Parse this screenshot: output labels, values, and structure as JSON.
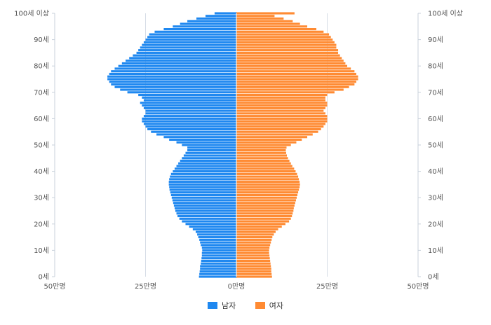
{
  "chart_data": {
    "type": "bar",
    "orientation": "horizontal-population-pyramid",
    "age_axis": {
      "min": 0,
      "max": 100,
      "tick_labels": [
        {
          "age": 0,
          "label": "0세"
        },
        {
          "age": 10,
          "label": "10세"
        },
        {
          "age": 20,
          "label": "20세"
        },
        {
          "age": 30,
          "label": "30세"
        },
        {
          "age": 40,
          "label": "40세"
        },
        {
          "age": 50,
          "label": "50세"
        },
        {
          "age": 60,
          "label": "60세"
        },
        {
          "age": 70,
          "label": "70세"
        },
        {
          "age": 80,
          "label": "80세"
        },
        {
          "age": 90,
          "label": "90세"
        },
        {
          "age": 100,
          "label": "100세 이상"
        }
      ]
    },
    "value_axis": {
      "unit": "만명",
      "range": [
        -50,
        50
      ],
      "tick_labels": [
        {
          "value": -50,
          "label": "50만명"
        },
        {
          "value": -25,
          "label": "25만명"
        },
        {
          "value": 0,
          "label": "0만명"
        },
        {
          "value": 25,
          "label": "25만명"
        },
        {
          "value": 50,
          "label": "50만명"
        }
      ]
    },
    "grid": true,
    "legend": {
      "position": "bottom-center",
      "items": [
        {
          "name": "남자",
          "color": "#1f88f0"
        },
        {
          "name": "여자",
          "color": "#ff8b33"
        }
      ]
    },
    "series": [
      {
        "name": "남자",
        "color": "#1f88f0",
        "values": [
          10.3,
          10.2,
          10.1,
          10.0,
          10.0,
          9.8,
          9.7,
          9.6,
          9.5,
          9.5,
          9.4,
          9.5,
          9.8,
          10.0,
          10.2,
          10.5,
          10.8,
          11.2,
          12.0,
          13.0,
          14.0,
          15.0,
          15.7,
          16.2,
          16.5,
          16.8,
          17.0,
          17.2,
          17.4,
          17.6,
          17.8,
          18.0,
          18.2,
          18.4,
          18.5,
          18.6,
          18.6,
          18.5,
          18.3,
          18.0,
          17.5,
          17.0,
          16.5,
          16.0,
          15.5,
          15.0,
          14.5,
          14.0,
          13.5,
          13.5,
          15.0,
          16.5,
          18.5,
          20.0,
          22.0,
          23.5,
          24.5,
          25.0,
          25.5,
          26.0,
          26.0,
          25.5,
          25.0,
          25.0,
          25.5,
          26.0,
          26.5,
          25.5,
          26.0,
          27.0,
          30.0,
          32.0,
          33.5,
          34.5,
          35.0,
          35.5,
          35.5,
          35.0,
          34.5,
          33.5,
          32.5,
          31.5,
          30.5,
          29.5,
          28.5,
          27.5,
          27.0,
          26.5,
          26.0,
          25.5,
          25.0,
          24.5,
          24.0,
          22.5,
          20.0,
          17.5,
          15.5,
          13.5,
          11.0,
          8.5,
          6.0
        ],
        "labels": []
      },
      {
        "name": "여자",
        "color": "#ff8b33",
        "values": [
          9.8,
          9.7,
          9.6,
          9.6,
          9.5,
          9.4,
          9.3,
          9.2,
          9.1,
          9.0,
          9.0,
          9.1,
          9.3,
          9.5,
          9.7,
          9.9,
          10.3,
          10.8,
          11.5,
          12.5,
          13.5,
          14.5,
          15.0,
          15.3,
          15.5,
          15.7,
          15.8,
          16.0,
          16.2,
          16.4,
          16.6,
          16.8,
          17.0,
          17.2,
          17.4,
          17.5,
          17.4,
          17.2,
          17.0,
          16.7,
          16.3,
          15.9,
          15.4,
          15.0,
          14.6,
          14.2,
          13.9,
          13.7,
          13.6,
          13.8,
          15.0,
          16.5,
          18.0,
          19.5,
          21.0,
          22.5,
          23.3,
          24.0,
          24.5,
          25.0,
          25.0,
          25.0,
          24.5,
          24.0,
          24.5,
          25.0,
          25.0,
          24.5,
          24.5,
          25.0,
          27.0,
          29.5,
          31.0,
          32.5,
          33.0,
          33.5,
          33.5,
          33.0,
          32.5,
          31.5,
          30.5,
          30.0,
          29.5,
          29.0,
          28.5,
          28.0,
          28.0,
          27.5,
          27.5,
          27.0,
          26.5,
          26.0,
          25.5,
          24.0,
          22.0,
          19.5,
          17.5,
          15.5,
          13.0,
          10.5,
          16.0
        ],
        "labels": []
      }
    ]
  }
}
